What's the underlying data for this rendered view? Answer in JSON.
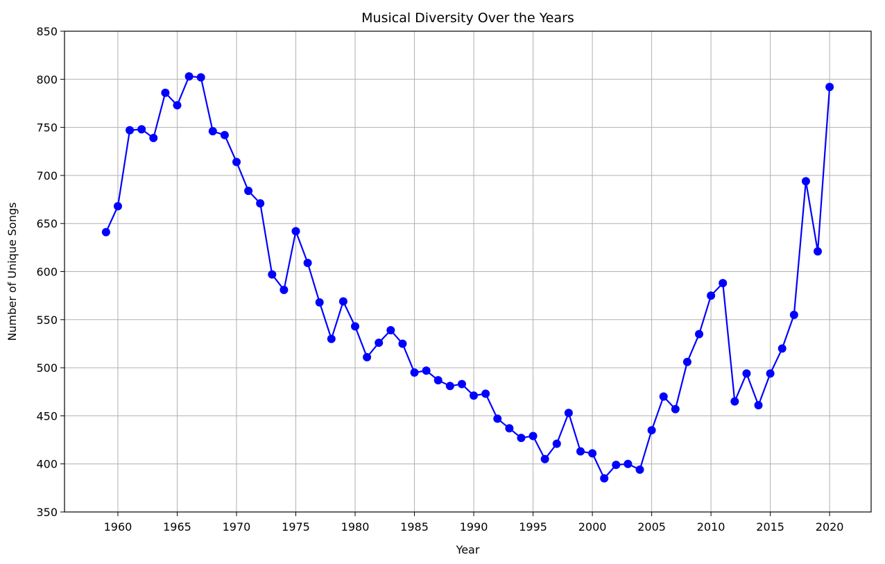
{
  "chart_data": {
    "type": "line",
    "title": "Musical Diversity Over the Years",
    "xlabel": "Year",
    "ylabel": "Number of Unique Songs",
    "xlim": [
      1955.5,
      2023.5
    ],
    "ylim": [
      350,
      850
    ],
    "x_ticks": [
      1960,
      1965,
      1970,
      1975,
      1980,
      1985,
      1990,
      1995,
      2000,
      2005,
      2010,
      2015,
      2020
    ],
    "y_ticks": [
      350,
      400,
      450,
      500,
      550,
      600,
      650,
      700,
      750,
      800,
      850
    ],
    "grid": true,
    "legend": "none",
    "line_color": "#0000ff",
    "marker": "circle",
    "x": [
      1959,
      1960,
      1961,
      1962,
      1963,
      1964,
      1965,
      1966,
      1967,
      1968,
      1969,
      1970,
      1971,
      1972,
      1973,
      1974,
      1975,
      1976,
      1977,
      1978,
      1979,
      1980,
      1981,
      1982,
      1983,
      1984,
      1985,
      1986,
      1987,
      1988,
      1989,
      1990,
      1991,
      1992,
      1993,
      1994,
      1995,
      1996,
      1997,
      1998,
      1999,
      2000,
      2001,
      2002,
      2003,
      2004,
      2005,
      2006,
      2007,
      2008,
      2009,
      2010,
      2011,
      2012,
      2013,
      2014,
      2015,
      2016,
      2017,
      2018,
      2019,
      2020
    ],
    "series": [
      {
        "values": [
          641,
          668,
          747,
          748,
          739,
          786,
          773,
          803,
          802,
          746,
          742,
          714,
          684,
          671,
          597,
          581,
          642,
          609,
          568,
          530,
          569,
          543,
          511,
          526,
          539,
          525,
          495,
          497,
          487,
          481,
          483,
          471,
          473,
          447,
          437,
          427,
          429,
          405,
          421,
          453,
          413,
          411,
          385,
          399,
          400,
          394,
          435,
          470,
          457,
          506,
          535,
          575,
          588,
          465,
          494,
          461,
          494,
          520,
          555,
          694,
          621,
          792
        ]
      }
    ]
  }
}
